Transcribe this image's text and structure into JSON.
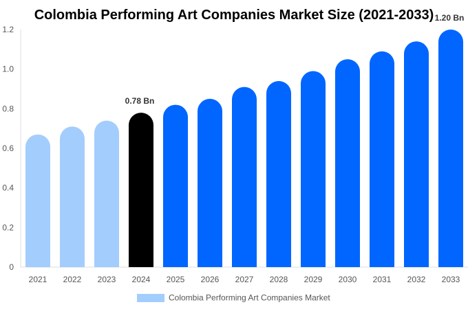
{
  "chart_data": {
    "type": "bar",
    "title": "Colombia Performing Art Companies Market Size (2021-2033)",
    "xlabel": "",
    "ylabel": "",
    "ylim": [
      0,
      1.2
    ],
    "yticks": [
      "0",
      "0.2",
      "0.4",
      "0.6",
      "0.8",
      "1.0",
      "1.2"
    ],
    "ytick_values": [
      0,
      0.2,
      0.4,
      0.6,
      0.8,
      1.0,
      1.2
    ],
    "categories": [
      "2021",
      "2022",
      "2023",
      "2024",
      "2025",
      "2026",
      "2027",
      "2028",
      "2029",
      "2030",
      "2031",
      "2032",
      "2033"
    ],
    "series": [
      {
        "name": "Colombia Performing Art Companies Market",
        "values": [
          0.67,
          0.71,
          0.74,
          0.78,
          0.82,
          0.85,
          0.91,
          0.94,
          0.99,
          1.05,
          1.09,
          1.14,
          1.2
        ]
      }
    ],
    "bar_colors": [
      "#a3cdfd",
      "#a3cdfd",
      "#a3cdfd",
      "#000000",
      "#0066ff",
      "#0066ff",
      "#0066ff",
      "#0066ff",
      "#0066ff",
      "#0066ff",
      "#0066ff",
      "#0066ff",
      "#0066ff"
    ],
    "data_labels": [
      {
        "index": 3,
        "text": "0.78 Bn"
      },
      {
        "index": 12,
        "text": "1.20 Bn"
      }
    ],
    "legend": {
      "label": "Colombia Performing Art Companies Market",
      "color": "#a3cdfd",
      "position": "bottom"
    },
    "grid": false
  }
}
